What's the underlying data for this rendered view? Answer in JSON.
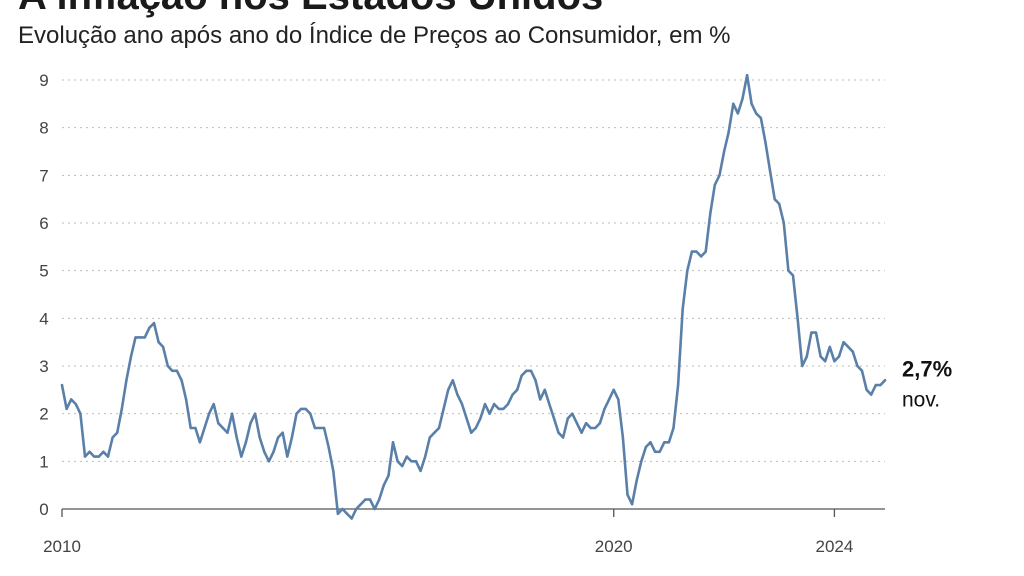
{
  "title": "A inflação nos Estados Unidos",
  "subtitle": "Evolução ano após ano do Índice de Preços ao Consumidor, em %",
  "colors": {
    "line": "#5a7fa8",
    "grid": "#bdbdbd",
    "text": "#222222"
  },
  "chart_data": {
    "type": "line",
    "title": "A inflação nos Estados Unidos",
    "subtitle": "Evolução ano após ano do Índice de Preços ao Consumidor, em %",
    "xlabel": "",
    "ylabel": "",
    "xlim": [
      2010.0,
      2024.917
    ],
    "ylim": [
      0,
      9
    ],
    "x_ticks": [
      2010,
      2020,
      2024
    ],
    "y_ticks": [
      0,
      1,
      2,
      3,
      4,
      5,
      6,
      7,
      8,
      9
    ],
    "grid": true,
    "series": [
      {
        "name": "",
        "points": [
          [
            2010.0,
            2.6
          ],
          [
            2010.083,
            2.1
          ],
          [
            2010.167,
            2.3
          ],
          [
            2010.25,
            2.2
          ],
          [
            2010.333,
            2.0
          ],
          [
            2010.417,
            1.1
          ],
          [
            2010.5,
            1.2
          ],
          [
            2010.583,
            1.1
          ],
          [
            2010.667,
            1.1
          ],
          [
            2010.75,
            1.2
          ],
          [
            2010.833,
            1.1
          ],
          [
            2010.917,
            1.5
          ],
          [
            2011.0,
            1.6
          ],
          [
            2011.083,
            2.1
          ],
          [
            2011.167,
            2.7
          ],
          [
            2011.25,
            3.2
          ],
          [
            2011.333,
            3.6
          ],
          [
            2011.417,
            3.6
          ],
          [
            2011.5,
            3.6
          ],
          [
            2011.583,
            3.8
          ],
          [
            2011.667,
            3.9
          ],
          [
            2011.75,
            3.5
          ],
          [
            2011.833,
            3.4
          ],
          [
            2011.917,
            3.0
          ],
          [
            2012.0,
            2.9
          ],
          [
            2012.083,
            2.9
          ],
          [
            2012.167,
            2.7
          ],
          [
            2012.25,
            2.3
          ],
          [
            2012.333,
            1.7
          ],
          [
            2012.417,
            1.7
          ],
          [
            2012.5,
            1.4
          ],
          [
            2012.583,
            1.7
          ],
          [
            2012.667,
            2.0
          ],
          [
            2012.75,
            2.2
          ],
          [
            2012.833,
            1.8
          ],
          [
            2012.917,
            1.7
          ],
          [
            2013.0,
            1.6
          ],
          [
            2013.083,
            2.0
          ],
          [
            2013.167,
            1.5
          ],
          [
            2013.25,
            1.1
          ],
          [
            2013.333,
            1.4
          ],
          [
            2013.417,
            1.8
          ],
          [
            2013.5,
            2.0
          ],
          [
            2013.583,
            1.5
          ],
          [
            2013.667,
            1.2
          ],
          [
            2013.75,
            1.0
          ],
          [
            2013.833,
            1.2
          ],
          [
            2013.917,
            1.5
          ],
          [
            2014.0,
            1.6
          ],
          [
            2014.083,
            1.1
          ],
          [
            2014.167,
            1.5
          ],
          [
            2014.25,
            2.0
          ],
          [
            2014.333,
            2.1
          ],
          [
            2014.417,
            2.1
          ],
          [
            2014.5,
            2.0
          ],
          [
            2014.583,
            1.7
          ],
          [
            2014.667,
            1.7
          ],
          [
            2014.75,
            1.7
          ],
          [
            2014.833,
            1.3
          ],
          [
            2014.917,
            0.8
          ],
          [
            2015.0,
            -0.1
          ],
          [
            2015.083,
            0.0
          ],
          [
            2015.167,
            -0.1
          ],
          [
            2015.25,
            -0.2
          ],
          [
            2015.333,
            0.0
          ],
          [
            2015.417,
            0.1
          ],
          [
            2015.5,
            0.2
          ],
          [
            2015.583,
            0.2
          ],
          [
            2015.667,
            0.0
          ],
          [
            2015.75,
            0.2
          ],
          [
            2015.833,
            0.5
          ],
          [
            2015.917,
            0.7
          ],
          [
            2016.0,
            1.4
          ],
          [
            2016.083,
            1.0
          ],
          [
            2016.167,
            0.9
          ],
          [
            2016.25,
            1.1
          ],
          [
            2016.333,
            1.0
          ],
          [
            2016.417,
            1.0
          ],
          [
            2016.5,
            0.8
          ],
          [
            2016.583,
            1.1
          ],
          [
            2016.667,
            1.5
          ],
          [
            2016.75,
            1.6
          ],
          [
            2016.833,
            1.7
          ],
          [
            2016.917,
            2.1
          ],
          [
            2017.0,
            2.5
          ],
          [
            2017.083,
            2.7
          ],
          [
            2017.167,
            2.4
          ],
          [
            2017.25,
            2.2
          ],
          [
            2017.333,
            1.9
          ],
          [
            2017.417,
            1.6
          ],
          [
            2017.5,
            1.7
          ],
          [
            2017.583,
            1.9
          ],
          [
            2017.667,
            2.2
          ],
          [
            2017.75,
            2.0
          ],
          [
            2017.833,
            2.2
          ],
          [
            2017.917,
            2.1
          ],
          [
            2018.0,
            2.1
          ],
          [
            2018.083,
            2.2
          ],
          [
            2018.167,
            2.4
          ],
          [
            2018.25,
            2.5
          ],
          [
            2018.333,
            2.8
          ],
          [
            2018.417,
            2.9
          ],
          [
            2018.5,
            2.9
          ],
          [
            2018.583,
            2.7
          ],
          [
            2018.667,
            2.3
          ],
          [
            2018.75,
            2.5
          ],
          [
            2018.833,
            2.2
          ],
          [
            2018.917,
            1.9
          ],
          [
            2019.0,
            1.6
          ],
          [
            2019.083,
            1.5
          ],
          [
            2019.167,
            1.9
          ],
          [
            2019.25,
            2.0
          ],
          [
            2019.333,
            1.8
          ],
          [
            2019.417,
            1.6
          ],
          [
            2019.5,
            1.8
          ],
          [
            2019.583,
            1.7
          ],
          [
            2019.667,
            1.7
          ],
          [
            2019.75,
            1.8
          ],
          [
            2019.833,
            2.1
          ],
          [
            2019.917,
            2.3
          ],
          [
            2020.0,
            2.5
          ],
          [
            2020.083,
            2.3
          ],
          [
            2020.167,
            1.5
          ],
          [
            2020.25,
            0.3
          ],
          [
            2020.333,
            0.1
          ],
          [
            2020.417,
            0.6
          ],
          [
            2020.5,
            1.0
          ],
          [
            2020.583,
            1.3
          ],
          [
            2020.667,
            1.4
          ],
          [
            2020.75,
            1.2
          ],
          [
            2020.833,
            1.2
          ],
          [
            2020.917,
            1.4
          ],
          [
            2021.0,
            1.4
          ],
          [
            2021.083,
            1.7
          ],
          [
            2021.167,
            2.6
          ],
          [
            2021.25,
            4.2
          ],
          [
            2021.333,
            5.0
          ],
          [
            2021.417,
            5.4
          ],
          [
            2021.5,
            5.4
          ],
          [
            2021.583,
            5.3
          ],
          [
            2021.667,
            5.4
          ],
          [
            2021.75,
            6.2
          ],
          [
            2021.833,
            6.8
          ],
          [
            2021.917,
            7.0
          ],
          [
            2022.0,
            7.5
          ],
          [
            2022.083,
            7.9
          ],
          [
            2022.167,
            8.5
          ],
          [
            2022.25,
            8.3
          ],
          [
            2022.333,
            8.6
          ],
          [
            2022.417,
            9.1
          ],
          [
            2022.5,
            8.5
          ],
          [
            2022.583,
            8.3
          ],
          [
            2022.667,
            8.2
          ],
          [
            2022.75,
            7.7
          ],
          [
            2022.833,
            7.1
          ],
          [
            2022.917,
            6.5
          ],
          [
            2023.0,
            6.4
          ],
          [
            2023.083,
            6.0
          ],
          [
            2023.167,
            5.0
          ],
          [
            2023.25,
            4.9
          ],
          [
            2023.333,
            4.0
          ],
          [
            2023.417,
            3.0
          ],
          [
            2023.5,
            3.2
          ],
          [
            2023.583,
            3.7
          ],
          [
            2023.667,
            3.7
          ],
          [
            2023.75,
            3.2
          ],
          [
            2023.833,
            3.1
          ],
          [
            2023.917,
            3.4
          ],
          [
            2024.0,
            3.1
          ],
          [
            2024.083,
            3.2
          ],
          [
            2024.167,
            3.5
          ],
          [
            2024.25,
            3.4
          ],
          [
            2024.333,
            3.3
          ],
          [
            2024.417,
            3.0
          ],
          [
            2024.5,
            2.9
          ],
          [
            2024.583,
            2.5
          ],
          [
            2024.667,
            2.4
          ],
          [
            2024.75,
            2.6
          ],
          [
            2024.833,
            2.6
          ],
          [
            2024.917,
            2.7
          ]
        ]
      }
    ],
    "end_annotation": {
      "value_label": "2,7%",
      "period_label": "nov."
    }
  }
}
